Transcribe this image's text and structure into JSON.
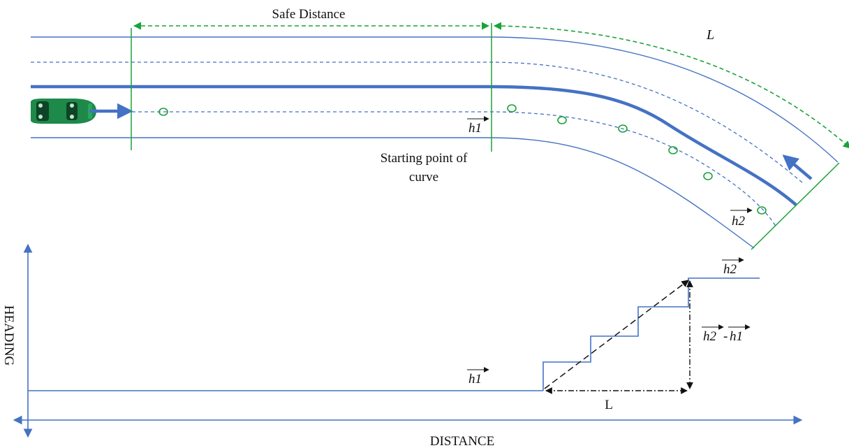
{
  "top": {
    "safe_distance": "Safe Distance",
    "curve_length": "L",
    "start_curve_line1": "Starting point of",
    "start_curve_line2": "curve",
    "h1": "h1",
    "h2": "h2"
  },
  "bottom": {
    "y_axis_label": "HEADING",
    "x_axis_label": "DISTANCE",
    "h1": "h1",
    "h2": "h2",
    "h_diff_a": "h2",
    "h_diff_sep": "-",
    "h_diff_b": "h1",
    "step_length": "L"
  },
  "colors": {
    "road": "#4472c4",
    "marker": "#1aa33a",
    "car": "#1d8a4a",
    "black": "#111111"
  }
}
